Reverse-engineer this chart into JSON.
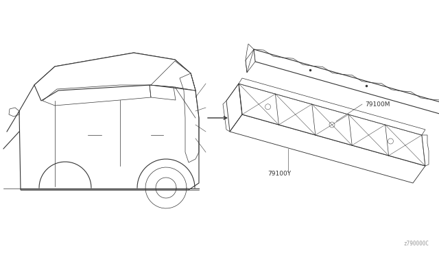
{
  "background_color": "#ffffff",
  "line_color": "#333333",
  "label_color": "#333333",
  "diagram_code": "z790000C",
  "parts": [
    {
      "label": "79100M"
    },
    {
      "label": "79100Y"
    }
  ]
}
